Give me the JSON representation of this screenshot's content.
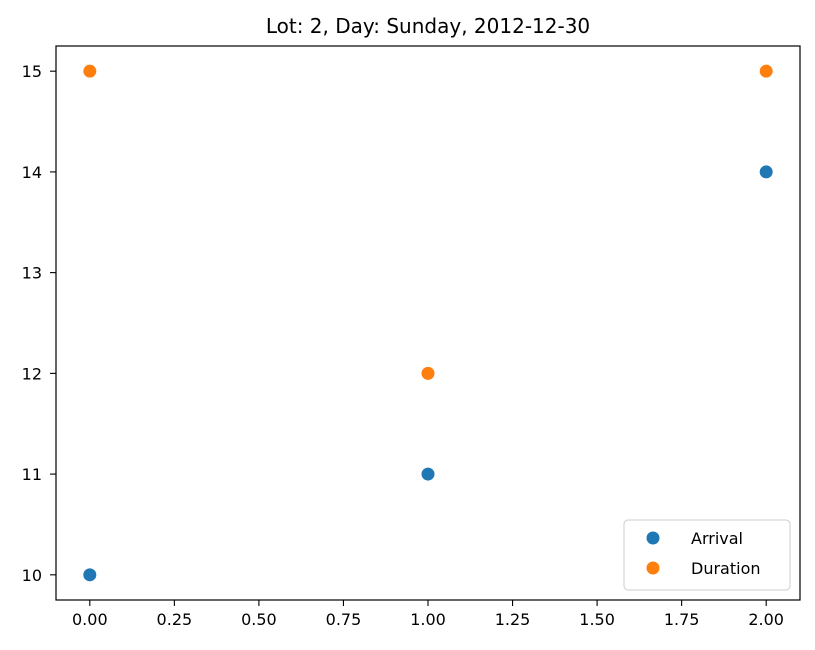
{
  "chart_data": {
    "type": "scatter",
    "title": "Lot: 2, Day: Sunday, 2012-12-30",
    "xlabel": "",
    "ylabel": "",
    "xlim": [
      -0.1,
      2.1
    ],
    "ylim": [
      9.75,
      15.25
    ],
    "xticks": [
      "0.00",
      "0.25",
      "0.50",
      "0.75",
      "1.00",
      "1.25",
      "1.50",
      "1.75",
      "2.00"
    ],
    "xtick_values": [
      0,
      0.25,
      0.5,
      0.75,
      1.0,
      1.25,
      1.5,
      1.75,
      2.0
    ],
    "yticks": [
      "10",
      "11",
      "12",
      "13",
      "14",
      "15"
    ],
    "ytick_values": [
      10,
      11,
      12,
      13,
      14,
      15
    ],
    "grid": false,
    "legend_position": "lower-right",
    "series": [
      {
        "name": "Arrival",
        "color": "#1f77b4",
        "x": [
          0,
          1,
          2
        ],
        "y": [
          10,
          11,
          14
        ]
      },
      {
        "name": "Duration",
        "color": "#ff7f0e",
        "x": [
          0,
          1,
          2
        ],
        "y": [
          15,
          12,
          15
        ]
      }
    ]
  }
}
